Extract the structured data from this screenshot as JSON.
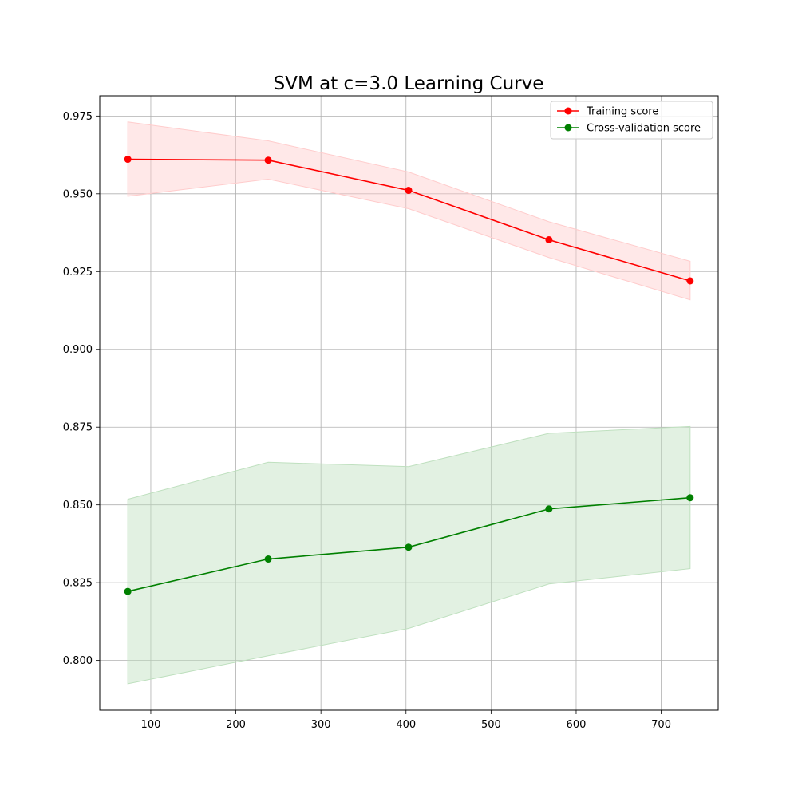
{
  "chart_data": {
    "type": "line",
    "title": "SVM at c=3.0 Learning Curve",
    "xlabel": "",
    "ylabel": "",
    "xlim": [
      40,
      767
    ],
    "ylim": [
      0.784,
      0.9815
    ],
    "xticks": [
      100,
      200,
      300,
      400,
      500,
      600,
      700
    ],
    "xtick_labels": [
      "100",
      "200",
      "300",
      "400",
      "500",
      "600",
      "700"
    ],
    "yticks": [
      0.8,
      0.825,
      0.85,
      0.875,
      0.9,
      0.925,
      0.95,
      0.975
    ],
    "ytick_labels": [
      "0.800",
      "0.825",
      "0.850",
      "0.875",
      "0.900",
      "0.925",
      "0.950",
      "0.975"
    ],
    "grid": true,
    "legend_position": "top-right",
    "x": [
      73,
      238,
      403,
      568,
      734
    ],
    "series": [
      {
        "name": "Training score",
        "color": "#ff0000",
        "band_color": "#ffcccc",
        "values": [
          0.9611,
          0.9608,
          0.9511,
          0.9352,
          0.922
        ],
        "upper": [
          0.9731,
          0.967,
          0.957,
          0.941,
          0.9283
        ],
        "lower": [
          0.9492,
          0.9547,
          0.9452,
          0.9295,
          0.9159
        ]
      },
      {
        "name": "Cross-validation score",
        "color": "#008000",
        "band_color": "#bfe0bf",
        "values": [
          0.8222,
          0.8326,
          0.8364,
          0.8487,
          0.8523
        ],
        "upper": [
          0.8518,
          0.8637,
          0.8623,
          0.873,
          0.8752
        ],
        "lower": [
          0.7925,
          0.8015,
          0.8103,
          0.8246,
          0.8295
        ]
      }
    ]
  }
}
